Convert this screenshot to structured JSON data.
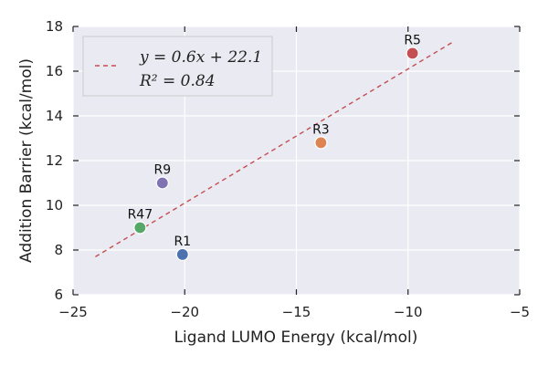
{
  "chart_data": {
    "type": "scatter",
    "xlabel": "Ligand LUMO Energy (kcal/mol)",
    "ylabel": "Addition Barrier (kcal/mol)",
    "xlim": [
      -25,
      -5
    ],
    "ylim": [
      6,
      18
    ],
    "x_ticks": [
      -25,
      -20,
      -15,
      -10,
      -5
    ],
    "y_ticks": [
      6,
      8,
      10,
      12,
      14,
      16,
      18
    ],
    "x_tick_labels": [
      "−25",
      "−20",
      "−15",
      "−10",
      "−5"
    ],
    "y_tick_labels": [
      "6",
      "8",
      "10",
      "12",
      "14",
      "16",
      "18"
    ],
    "grid": true,
    "background": "#eaeaf2",
    "points": [
      {
        "label": "R1",
        "x": -20.1,
        "y": 7.8,
        "color": "#4c72b0"
      },
      {
        "label": "R47",
        "x": -22.0,
        "y": 9.0,
        "color": "#55a868"
      },
      {
        "label": "R9",
        "x": -21.0,
        "y": 11.0,
        "color": "#8172b2"
      },
      {
        "label": "R3",
        "x": -13.9,
        "y": 12.8,
        "color": "#dd8452"
      },
      {
        "label": "R5",
        "x": -9.8,
        "y": 16.8,
        "color": "#c44e52"
      }
    ],
    "fit_line": {
      "x_start": -24,
      "x_end": -8,
      "slope": 0.6,
      "intercept": 22.1,
      "color": "#c44e52",
      "style": "dashed"
    },
    "legend": {
      "position": "top-left",
      "entries": [
        "y = 0.6x + 22.1",
        "R² = 0.84"
      ]
    }
  }
}
